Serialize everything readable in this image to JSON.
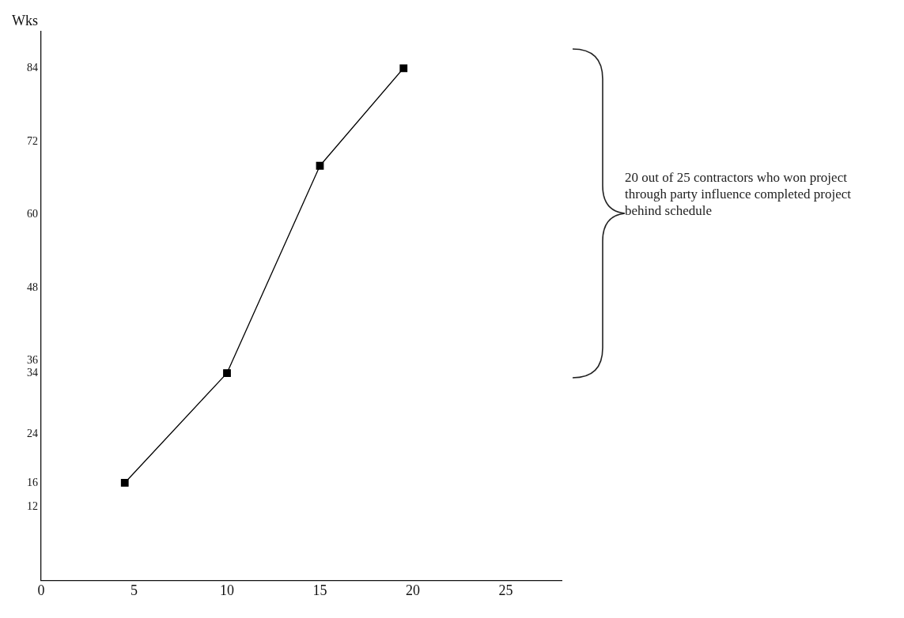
{
  "chart_data": {
    "type": "line",
    "ylabel": "Wks",
    "x": [
      4.5,
      10,
      15,
      19.5
    ],
    "series": [
      {
        "color": "#000000",
        "values": [
          16,
          34,
          68,
          84
        ]
      }
    ],
    "xlim": [
      0,
      28
    ],
    "xticks": [
      0,
      5,
      10,
      15,
      20,
      25
    ],
    "ylim": [
      0,
      90
    ],
    "yticks": [
      12,
      16,
      24,
      34,
      36,
      48,
      60,
      72,
      84
    ],
    "marker": "square",
    "line_style": "solid",
    "grid": false,
    "legend": false,
    "annotations": [
      "20 out of 25 contractors who won project through party influence completed project behind schedule"
    ]
  }
}
